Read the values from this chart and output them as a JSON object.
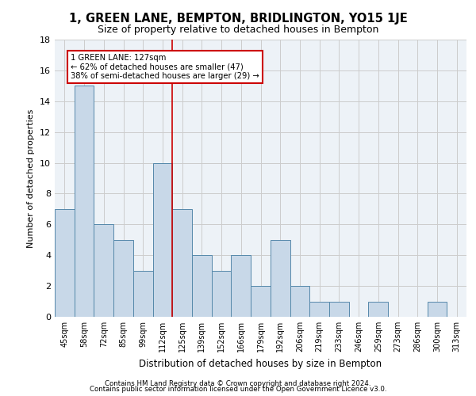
{
  "title1": "1, GREEN LANE, BEMPTON, BRIDLINGTON, YO15 1JE",
  "title2": "Size of property relative to detached houses in Bempton",
  "xlabel": "Distribution of detached houses by size in Bempton",
  "ylabel": "Number of detached properties",
  "footer1": "Contains HM Land Registry data © Crown copyright and database right 2024.",
  "footer2": "Contains public sector information licensed under the Open Government Licence v3.0.",
  "annotation_line1": "1 GREEN LANE: 127sqm",
  "annotation_line2": "← 62% of detached houses are smaller (47)",
  "annotation_line3": "38% of semi-detached houses are larger (29) →",
  "bin_labels": [
    "45sqm",
    "58sqm",
    "72sqm",
    "85sqm",
    "99sqm",
    "112sqm",
    "125sqm",
    "139sqm",
    "152sqm",
    "166sqm",
    "179sqm",
    "192sqm",
    "206sqm",
    "219sqm",
    "233sqm",
    "246sqm",
    "259sqm",
    "273sqm",
    "286sqm",
    "300sqm",
    "313sqm"
  ],
  "values": [
    7,
    15,
    6,
    5,
    3,
    10,
    7,
    4,
    3,
    4,
    2,
    5,
    2,
    1,
    1,
    0,
    1,
    0,
    0,
    1,
    0
  ],
  "bar_color": "#c8d8e8",
  "bar_edge_color": "#5588aa",
  "vline_color": "#cc0000",
  "annotation_box_edge": "#cc0000",
  "grid_color": "#cccccc",
  "background_color": "#edf2f7",
  "ylim": [
    0,
    18
  ],
  "yticks": [
    0,
    2,
    4,
    6,
    8,
    10,
    12,
    14,
    16,
    18
  ],
  "vline_x": 5.5
}
